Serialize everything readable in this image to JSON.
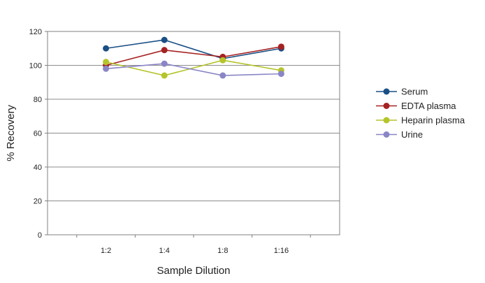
{
  "chart_data": {
    "type": "line",
    "title": "",
    "xlabel": "Sample Dilution",
    "ylabel": "% Recovery",
    "categories": [
      "1:2",
      "1:4",
      "1:8",
      "1:16"
    ],
    "ylim": [
      0,
      120
    ],
    "yticks": [
      0,
      20,
      40,
      60,
      80,
      100,
      120
    ],
    "grid": "horizontal",
    "legend": "right",
    "series": [
      {
        "name": "Serum",
        "color": "#1a4f85",
        "values": [
          110,
          115,
          104,
          110
        ]
      },
      {
        "name": "EDTA plasma",
        "color": "#a62222",
        "values": [
          100,
          109,
          105,
          111
        ]
      },
      {
        "name": "Heparin plasma",
        "color": "#b5c42a",
        "values": [
          102,
          94,
          103,
          97
        ]
      },
      {
        "name": "Urine",
        "color": "#8a86c6",
        "values": [
          98,
          101,
          94,
          95
        ]
      }
    ]
  }
}
